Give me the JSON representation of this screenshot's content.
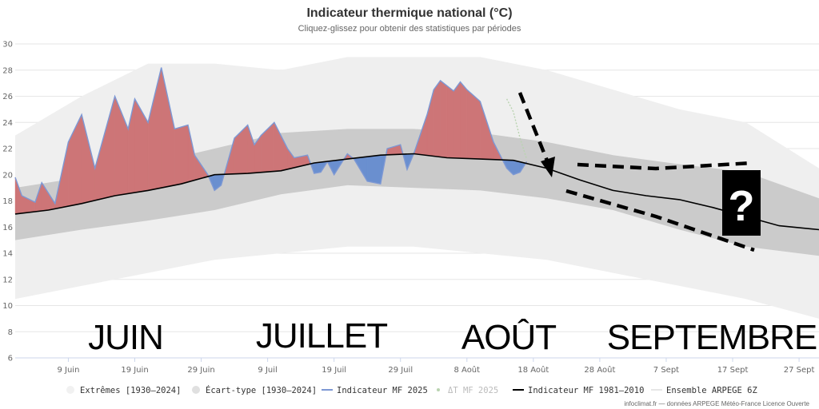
{
  "chart_data": {
    "type": "area",
    "title": "Indicateur thermique national (°C)",
    "subtitle": "Cliquez-glissez pour obtenir des statistiques par périodes",
    "y_ticks": [
      6,
      8,
      10,
      12,
      14,
      16,
      18,
      20,
      22,
      24,
      26,
      28,
      30
    ],
    "ylim": [
      6,
      30
    ],
    "x_start": "2025-06-01",
    "x_end": "2025-09-30",
    "x_tick_labels": [
      "9 Juin",
      "19 Juin",
      "29 Juin",
      "9 Juil",
      "19 Juil",
      "29 Juil",
      "8 Août",
      "18 Août",
      "28 Août",
      "7 Sept",
      "17 Sept",
      "27 Sept"
    ],
    "x_tick_dates": [
      "2025-06-09",
      "2025-06-19",
      "2025-06-29",
      "2025-07-09",
      "2025-07-19",
      "2025-07-29",
      "2025-08-08",
      "2025-08-18",
      "2025-08-28",
      "2025-09-07",
      "2025-09-17",
      "2025-09-27"
    ],
    "grid": true,
    "legend_position": "bottom",
    "series": [
      {
        "name": "Extrêmes [1930–2024]",
        "color": "#f1f1f1",
        "x": [
          "2025-06-01",
          "2025-06-11",
          "2025-06-21",
          "2025-07-01",
          "2025-07-11",
          "2025-07-21",
          "2025-07-31",
          "2025-08-10",
          "2025-08-20",
          "2025-08-30",
          "2025-09-09",
          "2025-09-19",
          "2025-09-30"
        ],
        "low": [
          10.5,
          11.5,
          12.5,
          13.5,
          14.0,
          14.5,
          14.5,
          14.0,
          13.5,
          12.5,
          11.5,
          10.5,
          9.0
        ],
        "high": [
          23.0,
          26.0,
          28.5,
          28.5,
          28.0,
          29.0,
          29.0,
          29.0,
          28.0,
          26.5,
          25.0,
          24.0,
          20.5
        ]
      },
      {
        "name": "Écart-type [1930–2024]",
        "color": "#cccccc",
        "x": [
          "2025-06-01",
          "2025-06-11",
          "2025-06-21",
          "2025-07-01",
          "2025-07-11",
          "2025-07-21",
          "2025-07-31",
          "2025-08-10",
          "2025-08-20",
          "2025-08-30",
          "2025-09-09",
          "2025-09-19",
          "2025-09-30"
        ],
        "low": [
          15.0,
          15.8,
          16.5,
          17.3,
          18.5,
          19.2,
          19.0,
          18.8,
          18.2,
          17.3,
          15.8,
          14.5,
          13.8
        ],
        "high": [
          19.0,
          19.8,
          20.8,
          22.0,
          23.2,
          23.5,
          23.5,
          23.2,
          22.5,
          21.5,
          20.8,
          20.2,
          18.2
        ]
      },
      {
        "name": "Indicateur MF 2025",
        "color": "#7d98d4",
        "x": [
          "2025-06-01",
          "2025-06-02",
          "2025-06-04",
          "2025-06-05",
          "2025-06-07",
          "2025-06-09",
          "2025-06-11",
          "2025-06-13",
          "2025-06-16",
          "2025-06-18",
          "2025-06-19",
          "2025-06-21",
          "2025-06-23",
          "2025-06-25",
          "2025-06-27",
          "2025-06-28",
          "2025-06-30",
          "2025-07-01",
          "2025-07-02",
          "2025-07-04",
          "2025-07-06",
          "2025-07-07",
          "2025-07-08",
          "2025-07-10",
          "2025-07-12",
          "2025-07-13",
          "2025-07-15",
          "2025-07-16",
          "2025-07-17",
          "2025-07-18",
          "2025-07-19",
          "2025-07-21",
          "2025-07-22",
          "2025-07-24",
          "2025-07-26",
          "2025-07-27",
          "2025-07-29",
          "2025-07-30",
          "2025-07-31",
          "2025-08-02",
          "2025-08-03",
          "2025-08-04",
          "2025-08-05",
          "2025-08-06",
          "2025-08-07",
          "2025-08-08",
          "2025-08-10",
          "2025-08-12",
          "2025-08-14",
          "2025-08-15",
          "2025-08-16",
          "2025-08-17"
        ],
        "y": [
          19.8,
          18.4,
          17.9,
          19.4,
          17.8,
          22.5,
          24.6,
          20.5,
          26.0,
          23.5,
          25.8,
          24.0,
          28.2,
          23.5,
          23.8,
          21.5,
          20.0,
          18.8,
          19.2,
          22.8,
          23.8,
          22.3,
          23.0,
          24.0,
          22.0,
          21.3,
          21.5,
          20.1,
          20.2,
          21.0,
          20.0,
          21.6,
          21.2,
          19.5,
          19.3,
          22.0,
          22.3,
          20.4,
          21.6,
          24.6,
          26.5,
          27.2,
          26.8,
          26.4,
          27.1,
          26.5,
          25.6,
          22.5,
          20.5,
          20.0,
          20.2,
          21.0
        ]
      },
      {
        "name": "ΔT MF 2025",
        "color": "#b9d3b0",
        "x": [
          "2025-08-14",
          "2025-08-15",
          "2025-08-16",
          "2025-08-17"
        ],
        "y": [
          25.8,
          24.8,
          22.8,
          21.2
        ]
      },
      {
        "name": "Indicateur MF 1981–2010",
        "color": "#000000",
        "x": [
          "2025-06-01",
          "2025-06-06",
          "2025-06-11",
          "2025-06-16",
          "2025-06-21",
          "2025-06-26",
          "2025-07-01",
          "2025-07-06",
          "2025-07-11",
          "2025-07-16",
          "2025-07-21",
          "2025-07-26",
          "2025-07-31",
          "2025-08-05",
          "2025-08-10",
          "2025-08-15",
          "2025-08-20",
          "2025-08-25",
          "2025-08-30",
          "2025-09-04",
          "2025-09-09",
          "2025-09-14",
          "2025-09-19",
          "2025-09-24",
          "2025-09-30"
        ],
        "y": [
          17.0,
          17.3,
          17.8,
          18.4,
          18.8,
          19.3,
          20.0,
          20.1,
          20.3,
          20.9,
          21.2,
          21.5,
          21.6,
          21.3,
          21.2,
          21.1,
          20.5,
          19.6,
          18.8,
          18.4,
          18.1,
          17.5,
          16.8,
          16.1,
          15.8
        ]
      },
      {
        "name": "Ensemble ARPEGE 6Z",
        "color": "#e6e6e6",
        "x": [],
        "y": []
      }
    ],
    "annotations": {
      "months": [
        "JUIN",
        "JUILLET",
        "AOÛT",
        "SEPTEMBRE"
      ],
      "question": "?"
    }
  },
  "credit": "infoclimat.fr — données ARPEGE Météo-France Licence Ouverte"
}
